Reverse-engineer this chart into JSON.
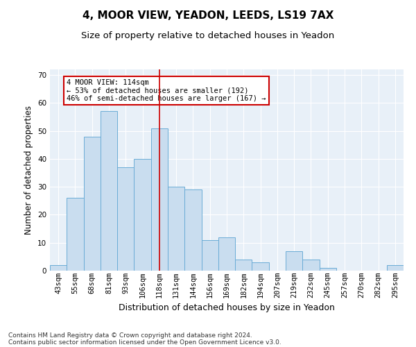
{
  "title1": "4, MOOR VIEW, YEADON, LEEDS, LS19 7AX",
  "title2": "Size of property relative to detached houses in Yeadon",
  "xlabel": "Distribution of detached houses by size in Yeadon",
  "ylabel": "Number of detached properties",
  "categories": [
    "43sqm",
    "55sqm",
    "68sqm",
    "81sqm",
    "93sqm",
    "106sqm",
    "118sqm",
    "131sqm",
    "144sqm",
    "156sqm",
    "169sqm",
    "182sqm",
    "194sqm",
    "207sqm",
    "219sqm",
    "232sqm",
    "245sqm",
    "257sqm",
    "270sqm",
    "282sqm",
    "295sqm"
  ],
  "values": [
    2,
    26,
    48,
    57,
    37,
    40,
    51,
    30,
    29,
    11,
    12,
    4,
    3,
    0,
    7,
    4,
    1,
    0,
    0,
    0,
    2
  ],
  "bar_color": "#c9ddef",
  "bar_edge_color": "#6aacd6",
  "background_color": "#e8f0f8",
  "red_line_index": 6,
  "red_line_color": "#cc0000",
  "annotation_text": "4 MOOR VIEW: 114sqm\n← 53% of detached houses are smaller (192)\n46% of semi-detached houses are larger (167) →",
  "annotation_box_color": "white",
  "annotation_box_edge_color": "#cc0000",
  "ylim": [
    0,
    72
  ],
  "yticks": [
    0,
    10,
    20,
    30,
    40,
    50,
    60,
    70
  ],
  "footer1": "Contains HM Land Registry data © Crown copyright and database right 2024.",
  "footer2": "Contains public sector information licensed under the Open Government Licence v3.0.",
  "title1_fontsize": 11,
  "title2_fontsize": 9.5,
  "xlabel_fontsize": 9,
  "ylabel_fontsize": 8.5,
  "tick_fontsize": 7.5,
  "annotation_fontsize": 7.5,
  "footer_fontsize": 6.5
}
